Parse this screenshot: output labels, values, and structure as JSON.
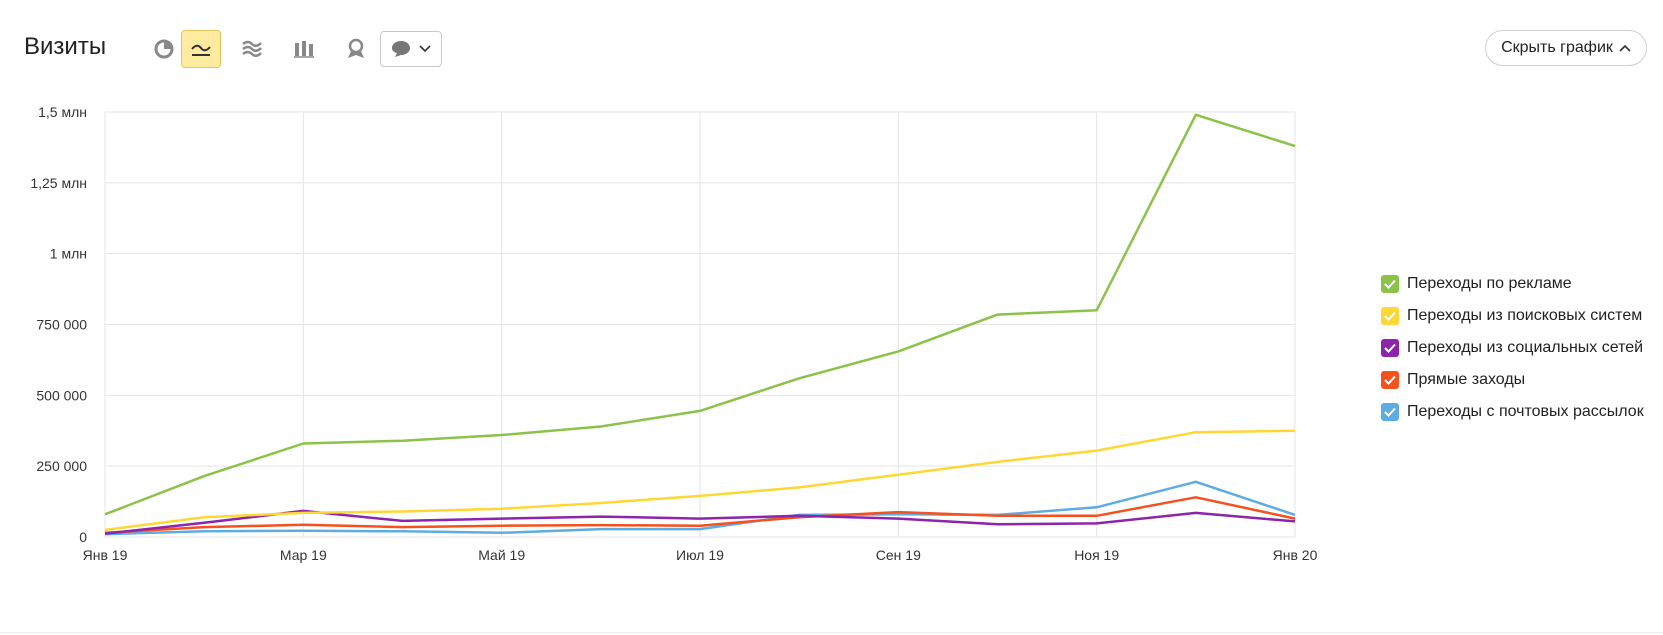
{
  "header": {
    "title": "Визиты",
    "hide_chart_label": "Скрыть график",
    "tools": [
      {
        "name": "pie-chart-icon",
        "active": false
      },
      {
        "name": "line-chart-icon",
        "active": true
      },
      {
        "name": "stacked-area-icon",
        "active": false
      },
      {
        "name": "column-chart-icon",
        "active": false
      },
      {
        "name": "map-icon",
        "active": false
      }
    ],
    "annotations_dropdown_icon": "comment-icon"
  },
  "colors": {
    "active_tool_bg": "#ffeba0",
    "grid": "#e5e5e5"
  },
  "chart_data": {
    "type": "line",
    "title": "",
    "xlabel": "",
    "ylabel": "",
    "ylim": [
      0,
      1500000
    ],
    "grid": true,
    "legend_position": "right",
    "x": [
      "Янв 19",
      "Фев 19",
      "Мар 19",
      "Апр 19",
      "Май 19",
      "Июн 19",
      "Июл 19",
      "Авг 19",
      "Сен 19",
      "Окт 19",
      "Ноя 19",
      "Дек 19",
      "Янв 20"
    ],
    "x_tick_labels": [
      "Янв 19",
      "Мар 19",
      "Май 19",
      "Июл 19",
      "Сен 19",
      "Ноя 19",
      "Янв 20"
    ],
    "x_tick_indices": [
      0,
      2,
      4,
      6,
      8,
      10,
      12
    ],
    "y_tick_values": [
      0,
      250000,
      500000,
      750000,
      1000000,
      1250000,
      1500000
    ],
    "y_tick_labels": [
      "0",
      "250 000",
      "500 000",
      "750 000",
      "1 млн",
      "1,25 млн",
      "1,5 млн"
    ],
    "series": [
      {
        "name": "Переходы по рекламе",
        "color": "#8bc34a",
        "values": [
          80000,
          215000,
          330000,
          340000,
          360000,
          390000,
          445000,
          560000,
          655000,
          785000,
          800000,
          1490000,
          1380000
        ]
      },
      {
        "name": "Переходы из поисковых систем",
        "color": "#fdd835",
        "values": [
          25000,
          70000,
          85000,
          90000,
          100000,
          120000,
          145000,
          175000,
          220000,
          265000,
          305000,
          370000,
          375000
        ]
      },
      {
        "name": "Переходы из социальных сетей",
        "color": "#8e24aa",
        "values": [
          12000,
          50000,
          92000,
          57000,
          65000,
          72000,
          65000,
          75000,
          65000,
          45000,
          48000,
          85000,
          55000
        ]
      },
      {
        "name": "Прямые заходы",
        "color": "#f4511e",
        "values": [
          15000,
          35000,
          43000,
          35000,
          40000,
          42000,
          40000,
          70000,
          88000,
          75000,
          75000,
          140000,
          65000
        ]
      },
      {
        "name": "Переходы с почтовых рассылок",
        "color": "#5dade2",
        "values": [
          10000,
          20000,
          22000,
          20000,
          15000,
          28000,
          28000,
          78000,
          80000,
          78000,
          105000,
          195000,
          78000
        ]
      }
    ]
  }
}
